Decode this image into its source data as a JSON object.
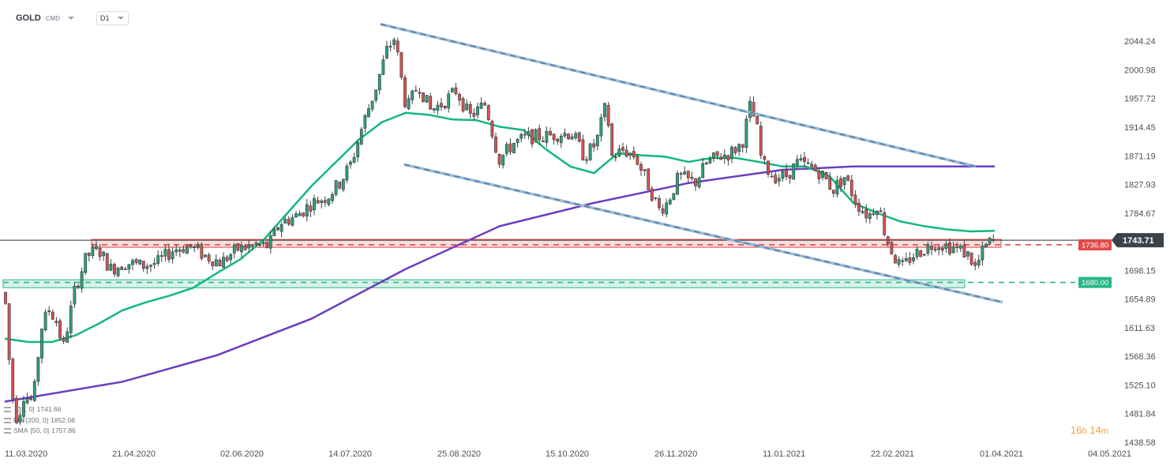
{
  "toolbar": {
    "symbol": "GOLD",
    "source": "CMD",
    "interval": "D1"
  },
  "countdown": {
    "hours": "16",
    "h_unit": "h",
    "minutes": "14",
    "m_unit": "m"
  },
  "legend": [
    {
      "name": "",
      "params": "[33, 0]",
      "value": "1741.66"
    },
    {
      "name": "MA",
      "params": "[200, 0]",
      "value": "1852.08"
    },
    {
      "name": "SMA",
      "params": "[50, 0]",
      "value": "1757.86"
    }
  ],
  "colors": {
    "up_candle": "#2fa17a",
    "down_candle": "#d9534f",
    "ma_long": "#6d3cbf",
    "ma_short": "#14b87a",
    "channel": "#5b87b0",
    "resistance": "#e24a4a",
    "support": "#2ab685",
    "price_line": "#2b3036",
    "price_badge": "#3b424a"
  },
  "chart_data": {
    "type": "candlestick",
    "symbol": "GOLD",
    "interval": "D1",
    "ylim": [
      1438.58,
      2075
    ],
    "yticks": [
      2044.24,
      2000.98,
      1957.72,
      1914.45,
      1871.19,
      1827.93,
      1784.67,
      1698.15,
      1654.89,
      1611.63,
      1568.36,
      1525.1,
      1481.84,
      1438.58
    ],
    "xticks": [
      "11.03.2020",
      "21.04.2020",
      "02.06.2020",
      "14.07.2020",
      "25.08.2020",
      "15.10.2020",
      "26.11.2020",
      "11.01.2021",
      "22.02.2021",
      "01.04.2021",
      "04.05.2021"
    ],
    "current_price": 1743.71,
    "current_price_label": "1743.71",
    "levels": [
      {
        "name": "resistance",
        "value": 1736.8,
        "label": "1736.80",
        "zone": [
          1733,
          1745
        ]
      },
      {
        "name": "support",
        "value": 1680.0,
        "label": "1680.00",
        "zone": [
          1672,
          1684
        ]
      }
    ],
    "channel": {
      "upper": [
        [
          0.144,
          2070
        ],
        [
          0.625,
          1855
        ]
      ],
      "lower": [
        [
          0.144,
          1858
        ],
        [
          0.6755,
          1650
        ]
      ]
    },
    "ma_short_path": [
      [
        0.0,
        1595
      ],
      [
        0.0123,
        1590
      ],
      [
        0.0246,
        1590
      ],
      [
        0.0369,
        1600
      ],
      [
        0.0492,
        1618
      ],
      [
        0.0615,
        1638
      ],
      [
        0.0738,
        1650
      ],
      [
        0.0861,
        1660
      ],
      [
        0.0984,
        1672
      ],
      [
        0.1107,
        1694
      ],
      [
        0.123,
        1715
      ],
      [
        0.1353,
        1745
      ],
      [
        0.1476,
        1785
      ],
      [
        0.1599,
        1825
      ],
      [
        0.1722,
        1860
      ],
      [
        0.1845,
        1895
      ],
      [
        0.1968,
        1922
      ],
      [
        0.2091,
        1936
      ],
      [
        0.2214,
        1933
      ],
      [
        0.2337,
        1926
      ],
      [
        0.246,
        1925
      ],
      [
        0.2583,
        1915
      ],
      [
        0.2706,
        1910
      ],
      [
        0.2829,
        1880
      ],
      [
        0.2952,
        1855
      ],
      [
        0.3075,
        1845
      ],
      [
        0.3198,
        1875
      ],
      [
        0.3321,
        1872
      ],
      [
        0.3444,
        1870
      ],
      [
        0.3567,
        1862
      ],
      [
        0.369,
        1868
      ],
      [
        0.3813,
        1868
      ],
      [
        0.3936,
        1862
      ],
      [
        0.4059,
        1855
      ],
      [
        0.4182,
        1855
      ],
      [
        0.4305,
        1840
      ],
      [
        0.4428,
        1800
      ],
      [
        0.4551,
        1785
      ],
      [
        0.4674,
        1772
      ],
      [
        0.4797,
        1765
      ],
      [
        0.492,
        1760
      ],
      [
        0.5043,
        1757
      ],
      [
        0.5166,
        1758
      ]
    ],
    "ma_long_path": [
      [
        0.0,
        1500
      ],
      [
        0.0615,
        1530
      ],
      [
        0.1107,
        1570
      ],
      [
        0.1599,
        1625
      ],
      [
        0.2091,
        1700
      ],
      [
        0.2583,
        1765
      ],
      [
        0.3075,
        1800
      ],
      [
        0.3567,
        1830
      ],
      [
        0.4059,
        1850
      ],
      [
        0.4428,
        1855
      ],
      [
        0.5166,
        1855
      ]
    ],
    "candles": []
  }
}
